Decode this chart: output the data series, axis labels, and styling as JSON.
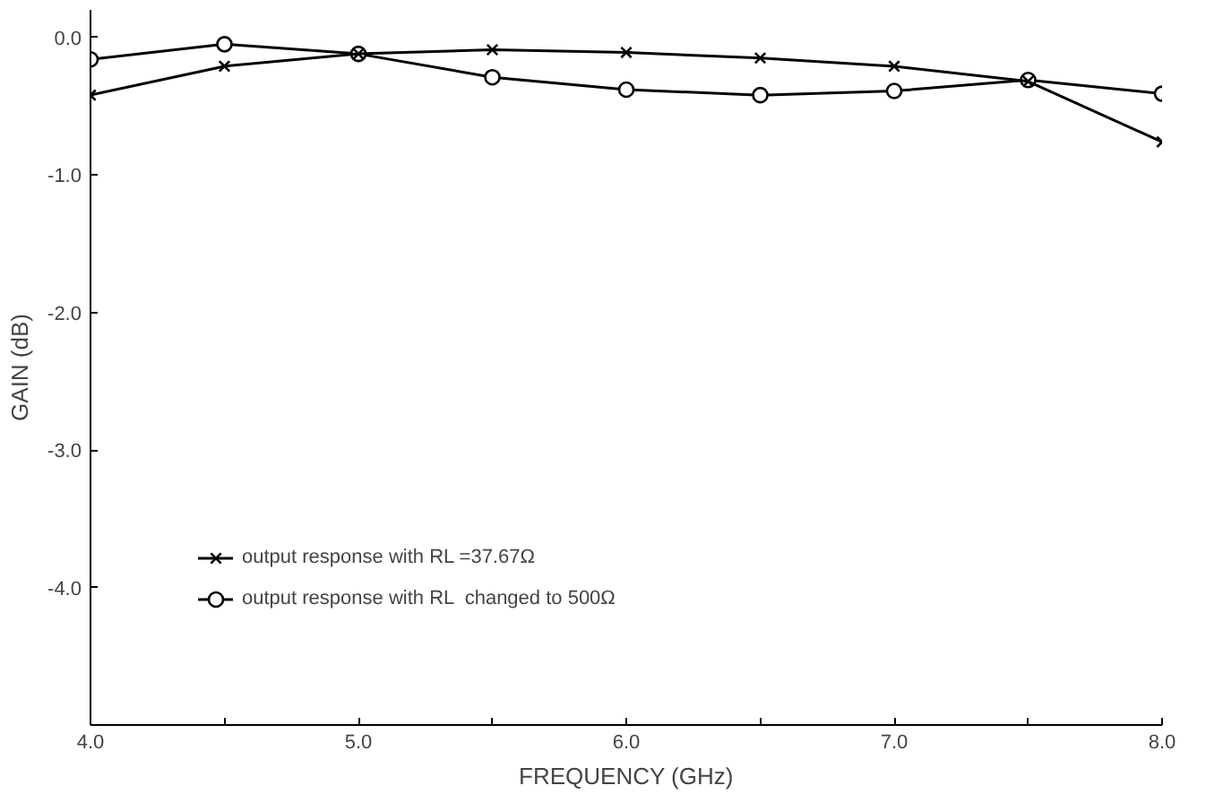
{
  "chart_data": {
    "type": "line",
    "xlabel": "FREQUENCY (GHz)",
    "ylabel": "GAIN (dB)",
    "x": [
      4.0,
      4.5,
      5.0,
      5.5,
      6.0,
      6.5,
      7.0,
      7.5,
      8.0
    ],
    "series": [
      {
        "name": "output response with RL =37.67Ω",
        "color": "#000000",
        "marker": "cross",
        "values": [
          -0.42,
          -0.21,
          -0.12,
          -0.09,
          -0.11,
          -0.15,
          -0.21,
          -0.32,
          -0.76
        ]
      },
      {
        "name": "output response with RL  changed to 500Ω",
        "color": "#000000",
        "marker": "circle",
        "values": [
          -0.16,
          -0.05,
          -0.12,
          -0.29,
          -0.38,
          -0.42,
          -0.39,
          -0.31,
          -0.41
        ]
      }
    ],
    "xlim": [
      4.0,
      8.0
    ],
    "ylim": [
      -5.0,
      0.2
    ],
    "xticks": [
      {
        "value": 4.0,
        "label": "4.0"
      },
      {
        "value": 4.5,
        "label": null
      },
      {
        "value": 5.0,
        "label": "5.0"
      },
      {
        "value": 5.5,
        "label": null
      },
      {
        "value": 6.0,
        "label": "6.0"
      },
      {
        "value": 6.5,
        "label": null
      },
      {
        "value": 7.0,
        "label": "7.0"
      },
      {
        "value": 7.5,
        "label": null
      },
      {
        "value": 8.0,
        "label": "8.0"
      }
    ],
    "yticks": [
      {
        "value": 0,
        "label": "0.0"
      },
      {
        "value": -1,
        "label": "-1.0"
      },
      {
        "value": -2,
        "label": "-2.0"
      },
      {
        "value": -3,
        "label": "-3.0"
      },
      {
        "value": -4,
        "label": "-4.0"
      }
    ],
    "grid": false,
    "legend": "bottom left",
    "line_style": "solid"
  }
}
